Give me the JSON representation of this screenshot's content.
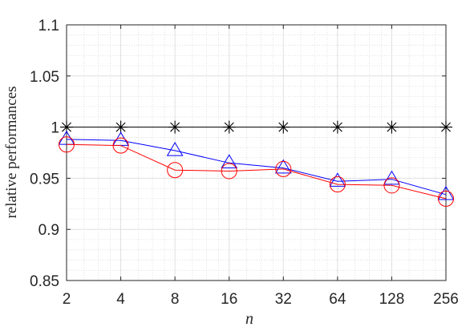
{
  "chart_data": {
    "type": "line",
    "title": "",
    "xlabel": "n",
    "ylabel": "relative performances",
    "x_scale": "log2",
    "categories": [
      "2",
      "4",
      "8",
      "16",
      "32",
      "64",
      "128",
      "256"
    ],
    "x": [
      2,
      4,
      8,
      16,
      32,
      64,
      128,
      256
    ],
    "ylim": [
      0.85,
      1.1
    ],
    "yticks": [
      "0.85",
      "0.9",
      "0.95",
      "1",
      "1.05",
      "1.1"
    ],
    "grid": true,
    "minor_grid": true,
    "legend": "none",
    "series": [
      {
        "color": "#000000",
        "marker": "asterisk",
        "values": [
          1.0,
          1.0,
          1.0,
          1.0,
          1.0,
          1.0,
          1.0,
          1.0
        ]
      },
      {
        "color": "#0000ff",
        "marker": "triangle",
        "values": [
          0.988,
          0.987,
          0.977,
          0.965,
          0.96,
          0.947,
          0.949,
          0.934
        ]
      },
      {
        "color": "#ff0000",
        "marker": "circle",
        "values": [
          0.983,
          0.982,
          0.958,
          0.957,
          0.959,
          0.944,
          0.943,
          0.93
        ]
      }
    ]
  }
}
